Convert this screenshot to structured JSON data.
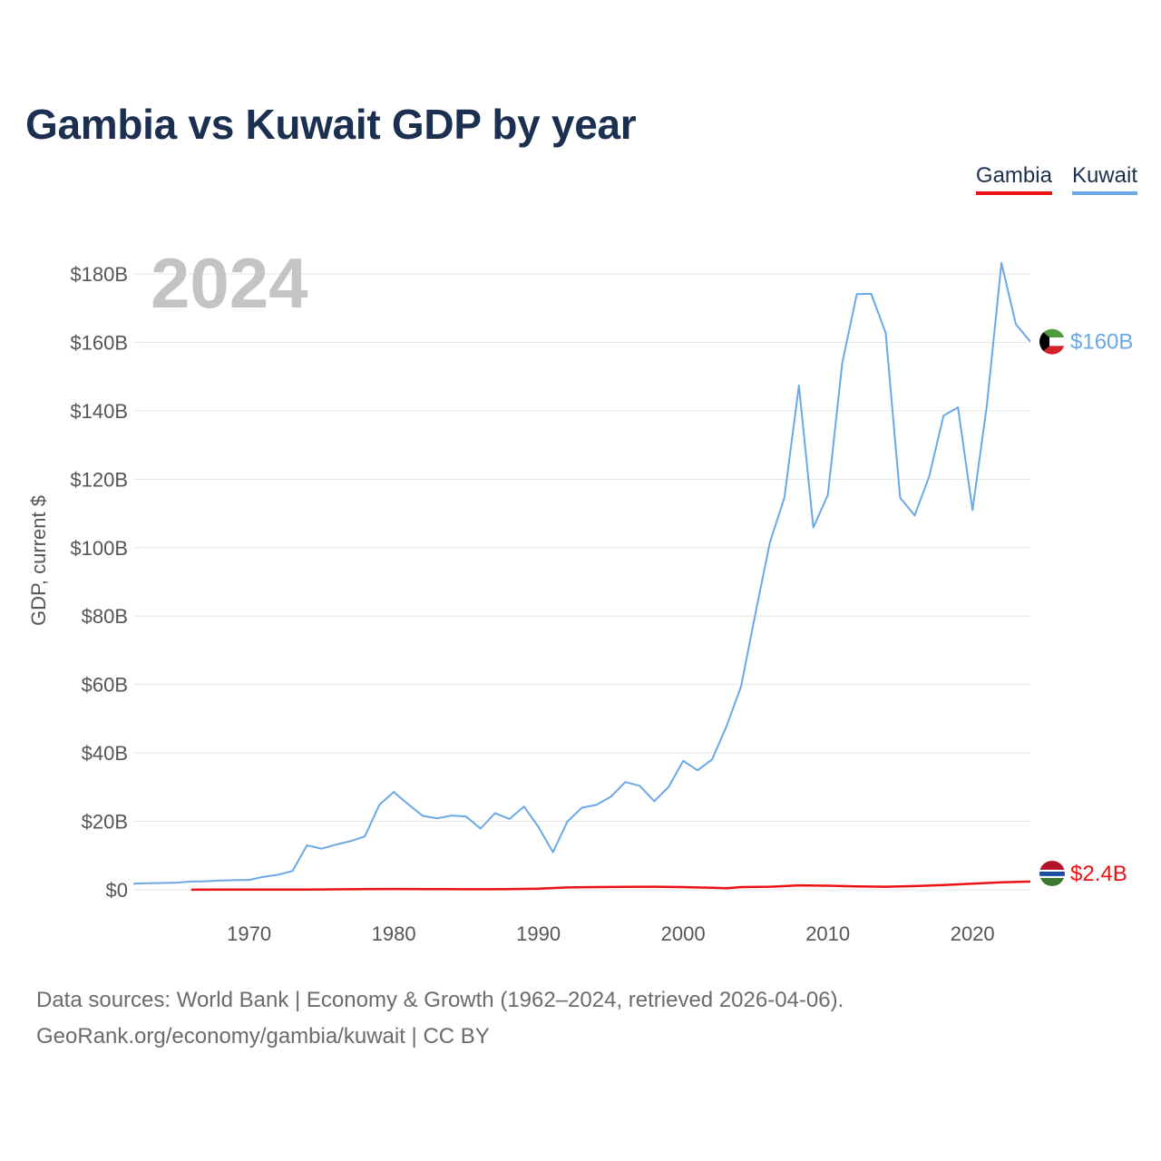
{
  "title": "Gambia vs Kuwait GDP by year",
  "legend": [
    {
      "name": "Gambia",
      "color": "#ee1111"
    },
    {
      "name": "Kuwait",
      "color": "#6aa8e6"
    }
  ],
  "source": {
    "line1": "Data sources: World Bank | Economy & Growth (1962–2024, retrieved 2026-04-06).",
    "line2": "GeoRank.org/economy/gambia/kuwait | CC BY"
  },
  "chart_data": {
    "type": "line",
    "title": "Gambia vs Kuwait GDP by year",
    "ylabel": "GDP, current $",
    "xlabel": "",
    "year_label": "2024",
    "xlim": [
      1962,
      2024
    ],
    "ylim": [
      0,
      180
    ],
    "units": "billion USD",
    "y_ticks": [
      0,
      20,
      40,
      60,
      80,
      100,
      120,
      140,
      160,
      180
    ],
    "y_tick_labels": [
      "$0",
      "$20B",
      "$40B",
      "$60B",
      "$80B",
      "$100B",
      "$120B",
      "$140B",
      "$160B",
      "$180B"
    ],
    "x_ticks": [
      1970,
      1980,
      1990,
      2000,
      2010,
      2020
    ],
    "x_tick_labels": [
      "1970",
      "1980",
      "1990",
      "2000",
      "2010",
      "2020"
    ],
    "grid": true,
    "legend_position": "top-right",
    "series": [
      {
        "name": "Kuwait",
        "color": "#6aa8e6",
        "end_label": "$160B",
        "flag_icon": "kuwait-flag-icon",
        "points": [
          [
            1962,
            1.8
          ],
          [
            1963,
            1.9
          ],
          [
            1964,
            2.0
          ],
          [
            1965,
            2.1
          ],
          [
            1966,
            2.4
          ],
          [
            1967,
            2.5
          ],
          [
            1968,
            2.7
          ],
          [
            1969,
            2.8
          ],
          [
            1970,
            2.9
          ],
          [
            1971,
            3.8
          ],
          [
            1972,
            4.4
          ],
          [
            1973,
            5.5
          ],
          [
            1974,
            13.0
          ],
          [
            1975,
            12.0
          ],
          [
            1976,
            13.2
          ],
          [
            1977,
            14.2
          ],
          [
            1978,
            15.6
          ],
          [
            1979,
            24.8
          ],
          [
            1980,
            28.6
          ],
          [
            1981,
            25.0
          ],
          [
            1982,
            21.6
          ],
          [
            1983,
            20.9
          ],
          [
            1984,
            21.7
          ],
          [
            1985,
            21.4
          ],
          [
            1986,
            17.9
          ],
          [
            1987,
            22.4
          ],
          [
            1988,
            20.7
          ],
          [
            1989,
            24.3
          ],
          [
            1990,
            18.4
          ],
          [
            1991,
            11.0
          ],
          [
            1992,
            19.9
          ],
          [
            1993,
            24.0
          ],
          [
            1994,
            24.8
          ],
          [
            1995,
            27.2
          ],
          [
            1996,
            31.5
          ],
          [
            1997,
            30.4
          ],
          [
            1998,
            25.9
          ],
          [
            1999,
            30.1
          ],
          [
            2000,
            37.7
          ],
          [
            2001,
            34.9
          ],
          [
            2002,
            38.1
          ],
          [
            2003,
            47.8
          ],
          [
            2004,
            59.4
          ],
          [
            2005,
            80.8
          ],
          [
            2006,
            101.6
          ],
          [
            2007,
            114.6
          ],
          [
            2008,
            147.4
          ],
          [
            2009,
            105.9
          ],
          [
            2010,
            115.4
          ],
          [
            2011,
            154.0
          ],
          [
            2012,
            174.1
          ],
          [
            2013,
            174.2
          ],
          [
            2014,
            162.7
          ],
          [
            2015,
            114.6
          ],
          [
            2016,
            109.4
          ],
          [
            2017,
            120.7
          ],
          [
            2018,
            138.6
          ],
          [
            2019,
            141.0
          ],
          [
            2020,
            111.0
          ],
          [
            2021,
            141.8
          ],
          [
            2022,
            183.2
          ],
          [
            2023,
            165.3
          ],
          [
            2024,
            160.2
          ]
        ]
      },
      {
        "name": "Gambia",
        "color": "#ee1111",
        "end_label": "$2.4B",
        "flag_icon": "gambia-flag-icon",
        "points": [
          [
            1966,
            0.03
          ],
          [
            1968,
            0.04
          ],
          [
            1970,
            0.05
          ],
          [
            1972,
            0.06
          ],
          [
            1974,
            0.09
          ],
          [
            1976,
            0.14
          ],
          [
            1978,
            0.2
          ],
          [
            1980,
            0.24
          ],
          [
            1982,
            0.22
          ],
          [
            1984,
            0.19
          ],
          [
            1986,
            0.15
          ],
          [
            1988,
            0.2
          ],
          [
            1990,
            0.32
          ],
          [
            1992,
            0.7
          ],
          [
            1994,
            0.8
          ],
          [
            1996,
            0.85
          ],
          [
            1998,
            0.9
          ],
          [
            2000,
            0.8
          ],
          [
            2002,
            0.58
          ],
          [
            2003,
            0.49
          ],
          [
            2004,
            0.8
          ],
          [
            2006,
            0.9
          ],
          [
            2008,
            1.3
          ],
          [
            2010,
            1.2
          ],
          [
            2012,
            1.0
          ],
          [
            2014,
            0.9
          ],
          [
            2016,
            1.1
          ],
          [
            2018,
            1.4
          ],
          [
            2020,
            1.8
          ],
          [
            2022,
            2.2
          ],
          [
            2024,
            2.4
          ]
        ]
      }
    ]
  }
}
